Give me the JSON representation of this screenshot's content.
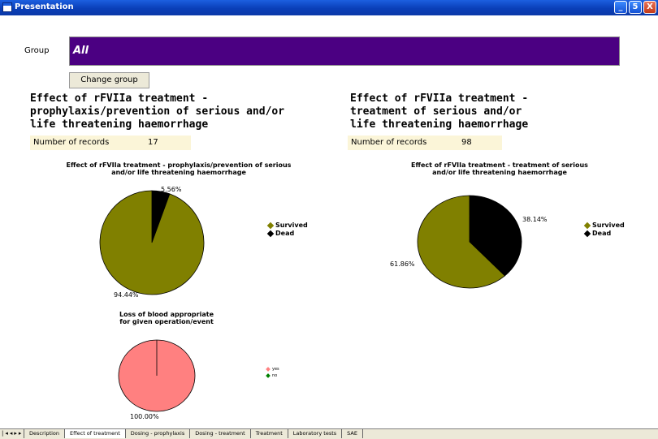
{
  "window": {
    "title": "Presentation"
  },
  "group": {
    "label": "Group",
    "value": "All",
    "change_button": "Change group"
  },
  "left": {
    "heading_lines": [
      "Effect of rFVIIa treatment -",
      "prophylaxis/prevention of serious and/or",
      "life threatening haemorrhage"
    ],
    "records_label": "Number of records",
    "records_value": "17"
  },
  "right": {
    "heading_lines": [
      "Effect of rFVIIa treatment -",
      "treatment of serious and/or",
      "life threatening haemorrhage"
    ],
    "records_label": "Number of records",
    "records_value": "98"
  },
  "chart_data": [
    {
      "type": "pie",
      "title_lines": [
        "Effect of rFVIIa treatment - prophylaxis/prevention of serious",
        "and/or life threatening haemorrhage"
      ],
      "categories": [
        "Survived",
        "Dead"
      ],
      "values": [
        94.44,
        5.56
      ],
      "labels": [
        "94.44%",
        "5.56%"
      ],
      "colors": [
        "#808000",
        "#000000"
      ],
      "legend": "right"
    },
    {
      "type": "pie",
      "title_lines": [
        "Effect of rFVIIa treatment - treatment of serious",
        "and/or life threatening haemorrhage"
      ],
      "categories": [
        "Survived",
        "Dead"
      ],
      "values": [
        61.86,
        38.14
      ],
      "labels": [
        "61.86%",
        "38.14%"
      ],
      "colors": [
        "#808000",
        "#000000"
      ],
      "legend": "right"
    },
    {
      "type": "pie",
      "title_lines": [
        "Loss of blood appropriate",
        "for given operation/event"
      ],
      "categories": [
        "yes",
        "no"
      ],
      "values": [
        100,
        0
      ],
      "labels": [
        "100.00%"
      ],
      "colors": [
        "#ff8080",
        "#008000"
      ],
      "legend": "right"
    }
  ],
  "tabs": [
    "Description",
    "Effect of treatment",
    "Dosing - prophylaxis",
    "Dosing - treatment",
    "Treatment",
    "Laboratory tests",
    "SAE"
  ],
  "active_tab": 1,
  "window_buttons": {
    "minimize": "_",
    "maximize": "5",
    "close": "X"
  }
}
